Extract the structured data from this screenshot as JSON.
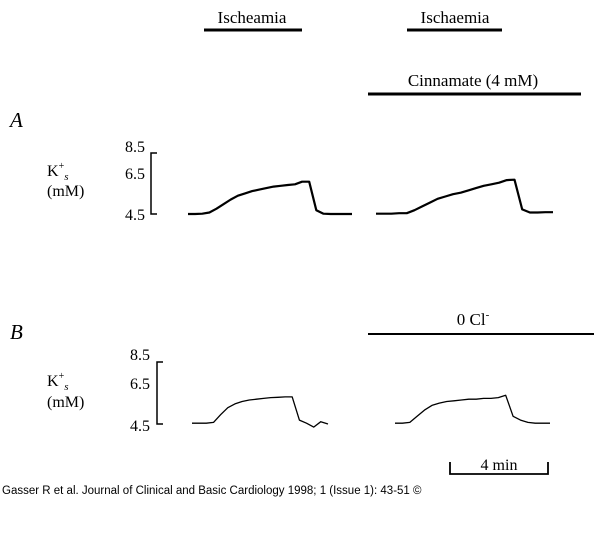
{
  "caption": "Gasser R et al. Journal of Clinical and Basic Cardiology 1998; 1 (Issue 1): 43-51 ©",
  "chart_data": [
    {
      "type": "line",
      "panel_label": "A",
      "ylabel_main": "K",
      "ylabel_sup": "+",
      "ylabel_sub": "s",
      "ylabel_unit": "(mM)",
      "y_ticks": [
        "8.5",
        "6.5",
        "4.5"
      ],
      "ylim": [
        4.5,
        8.5
      ],
      "periods": [
        {
          "label": "Ischeamia",
          "bar": "trace-1"
        },
        {
          "label": "Ischaemia",
          "bar": "trace-2"
        }
      ],
      "treatment": {
        "label": "Cinnamate (4 mM)"
      },
      "series": [
        {
          "values": [
            4.5,
            4.5,
            4.52,
            4.6,
            4.85,
            5.15,
            5.45,
            5.7,
            5.85,
            6.0,
            6.1,
            6.2,
            6.3,
            6.35,
            6.4,
            6.45,
            6.62,
            6.62,
            4.75,
            4.52,
            4.5,
            4.5,
            4.5,
            4.5
          ]
        },
        {
          "values": [
            4.52,
            4.52,
            4.52,
            4.55,
            4.55,
            4.75,
            5.0,
            5.25,
            5.5,
            5.65,
            5.8,
            5.9,
            6.05,
            6.2,
            6.35,
            6.45,
            6.55,
            6.72,
            6.75,
            4.8,
            4.6,
            4.6,
            4.62,
            4.62
          ]
        }
      ]
    },
    {
      "type": "line",
      "panel_label": "B",
      "ylabel_main": "K",
      "ylabel_sup": "+",
      "ylabel_sub": "s",
      "ylabel_unit": "(mM)",
      "y_ticks": [
        "8.5",
        "6.5",
        "4.5"
      ],
      "ylim": [
        4.5,
        8.5
      ],
      "treatment": {
        "label": "0 Cl",
        "label_sup": "-"
      },
      "series": [
        {
          "values": [
            4.55,
            4.55,
            4.55,
            4.6,
            5.1,
            5.55,
            5.8,
            5.95,
            6.05,
            6.1,
            6.15,
            6.2,
            6.22,
            6.25,
            6.25,
            4.75,
            4.55,
            4.3,
            4.65,
            4.5
          ]
        },
        {
          "values": [
            4.55,
            4.55,
            4.6,
            5.0,
            5.4,
            5.7,
            5.85,
            5.95,
            6.0,
            6.05,
            6.1,
            6.1,
            6.15,
            6.15,
            6.2,
            6.35,
            5.0,
            4.75,
            4.6,
            4.55,
            4.55,
            4.55
          ]
        }
      ]
    }
  ],
  "scale_bar": {
    "label": "4 min",
    "minutes": 4
  }
}
